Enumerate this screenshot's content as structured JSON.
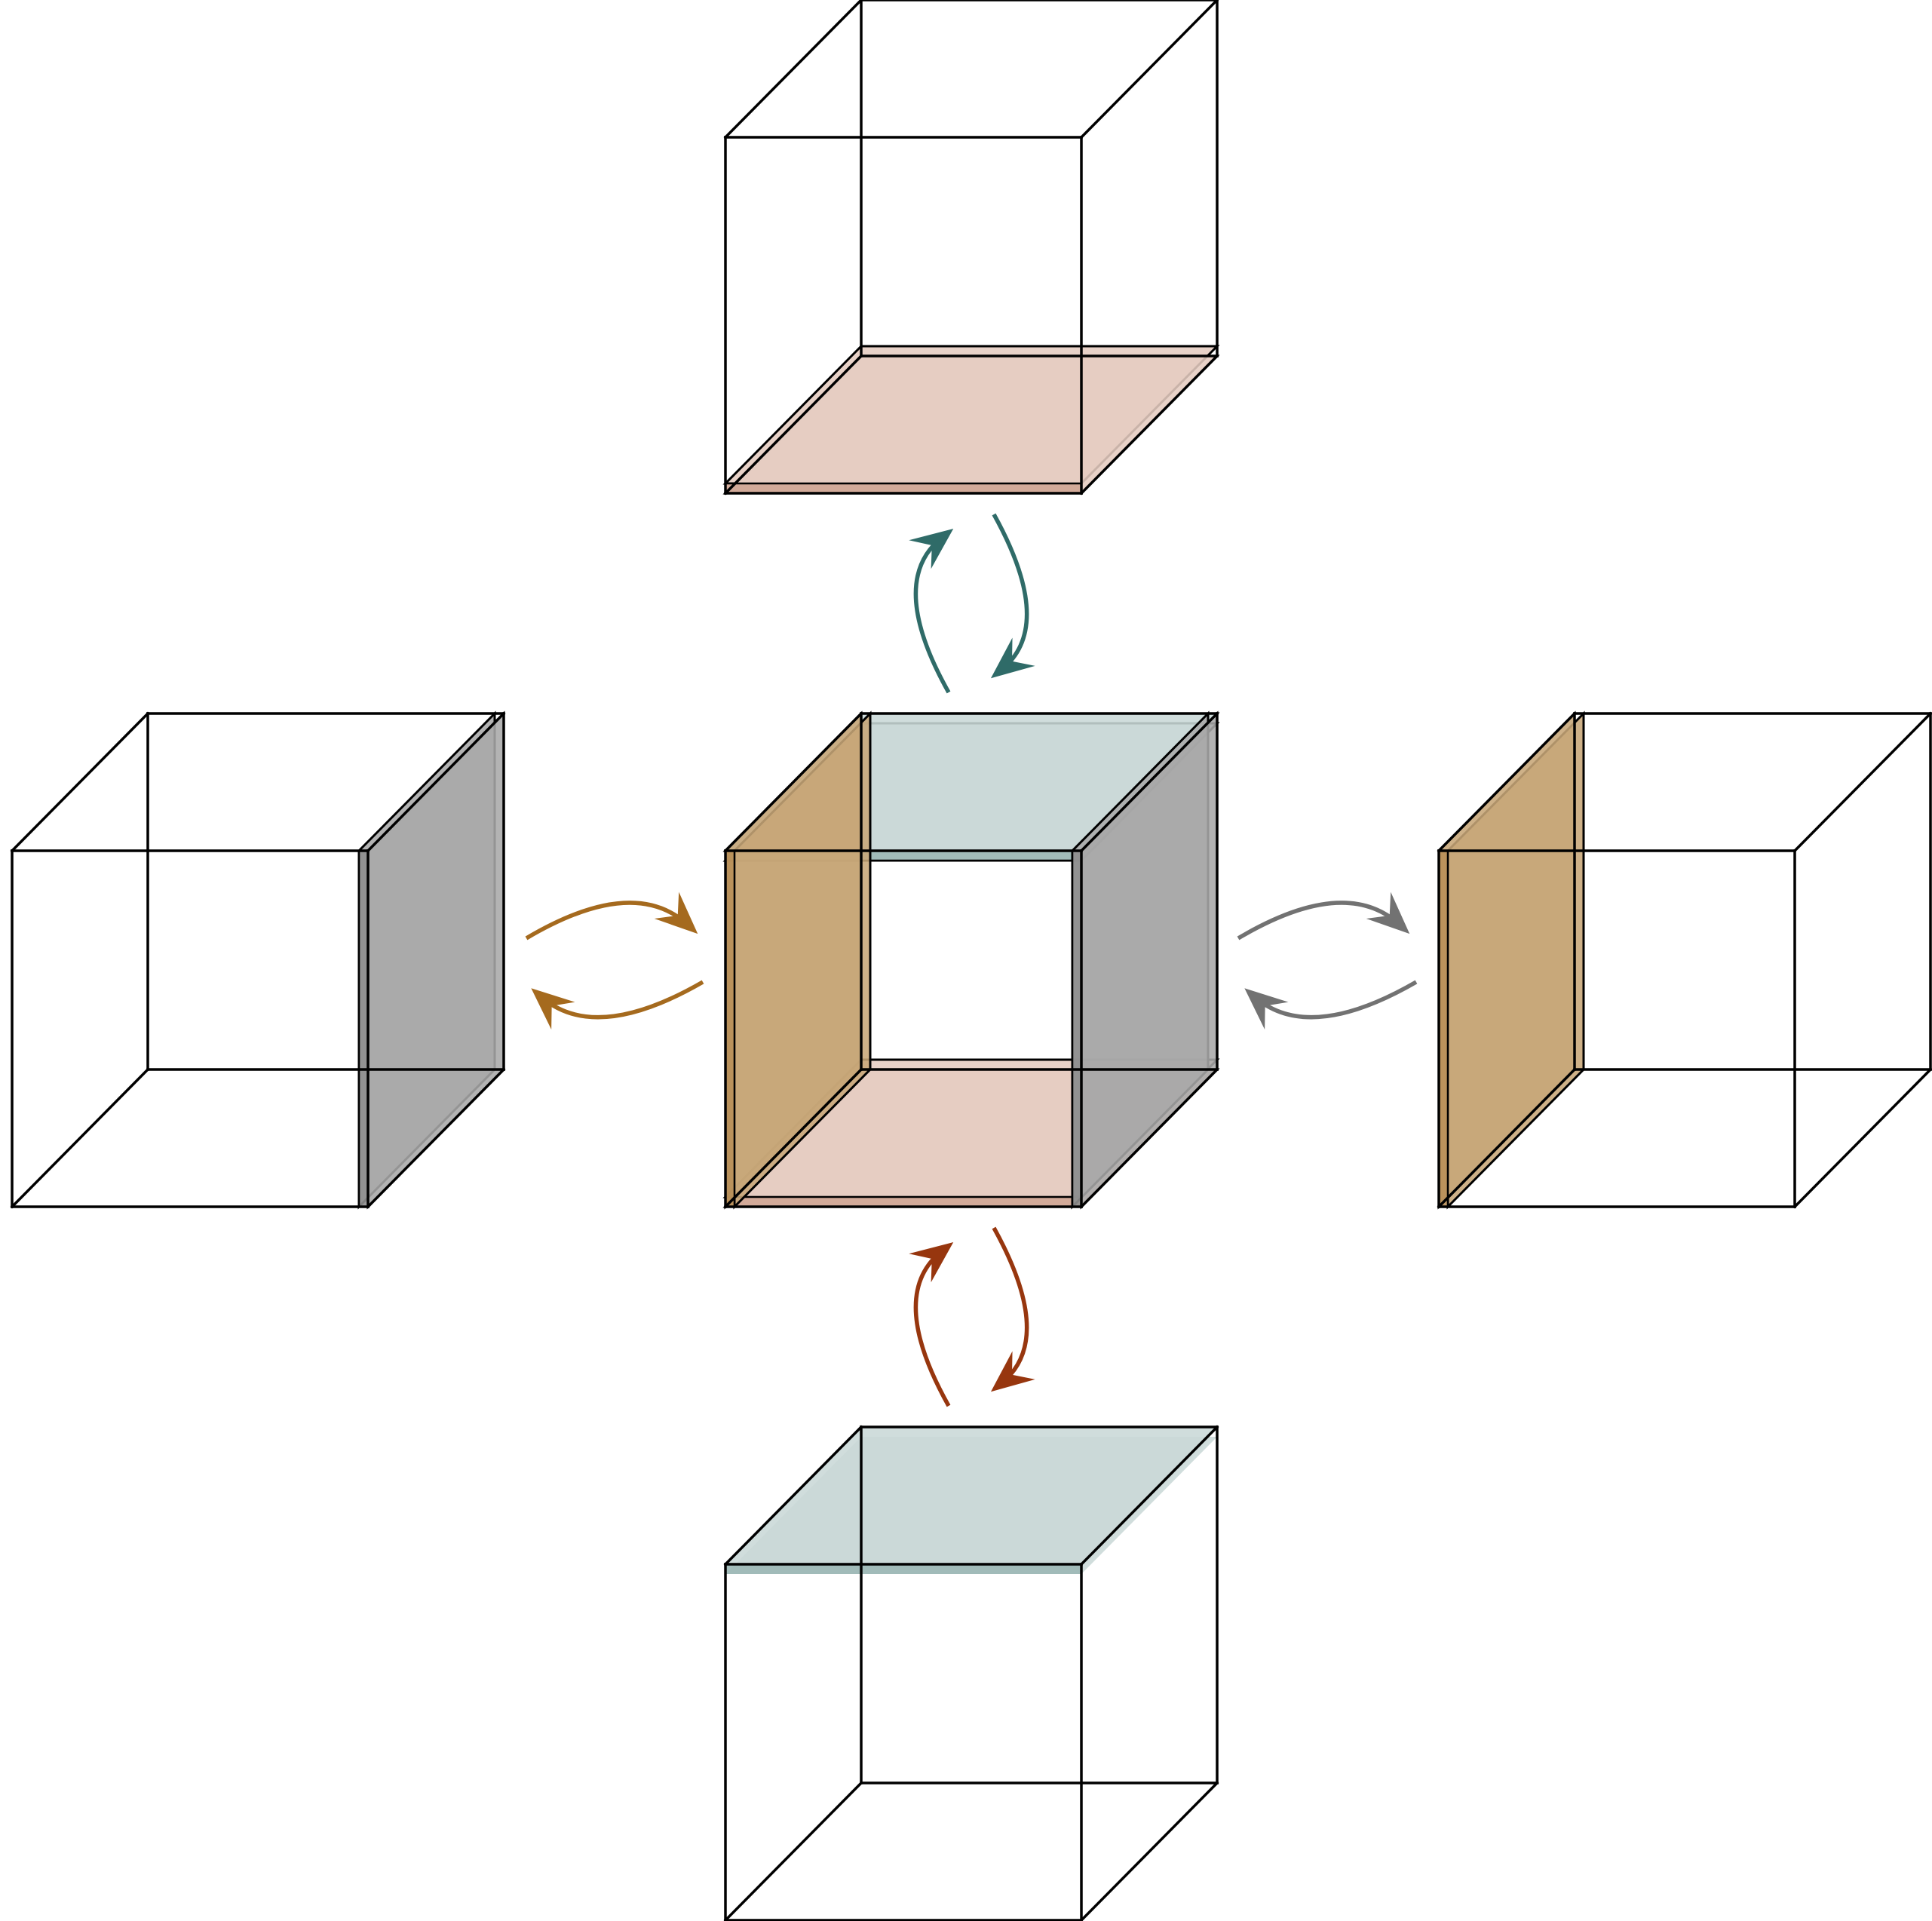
{
  "colors": {
    "top_face": "#C9D8D7",
    "top_face_edge": "#9BB7B5",
    "top_arrows": "#2F6B68",
    "bottom_face": "#E5CCC0",
    "bottom_face_edge": "#CFA593",
    "bottom_arrows": "#97360E",
    "left_face": "#C7A677",
    "left_face_edge": "#B88F58",
    "left_arrows": "#A56A1E",
    "right_face": "#A9A9A9",
    "right_face_edge": "#8E8E8E",
    "right_arrows": "#727272",
    "edges": "#000000",
    "background": "#FFFFFF"
  },
  "cubes": [
    {
      "id": "center",
      "shaded_faces": [
        "top",
        "bottom",
        "left",
        "right"
      ]
    },
    {
      "id": "upper",
      "shaded_faces": [
        "bottom"
      ]
    },
    {
      "id": "lower",
      "shaded_faces": [
        "top"
      ]
    },
    {
      "id": "left",
      "shaded_faces": [
        "right"
      ]
    },
    {
      "id": "right",
      "shaded_faces": [
        "left"
      ]
    }
  ],
  "arrow_pairs": [
    {
      "between": [
        "center",
        "upper"
      ],
      "color_key": "top_arrows",
      "directions": [
        "to-upper",
        "to-center"
      ]
    },
    {
      "between": [
        "center",
        "lower"
      ],
      "color_key": "bottom_arrows",
      "directions": [
        "to-center",
        "to-lower"
      ]
    },
    {
      "between": [
        "center",
        "left"
      ],
      "color_key": "left_arrows",
      "directions": [
        "to-center",
        "to-left"
      ]
    },
    {
      "between": [
        "center",
        "right"
      ],
      "color_key": "right_arrows",
      "directions": [
        "to-right",
        "to-center"
      ]
    }
  ]
}
